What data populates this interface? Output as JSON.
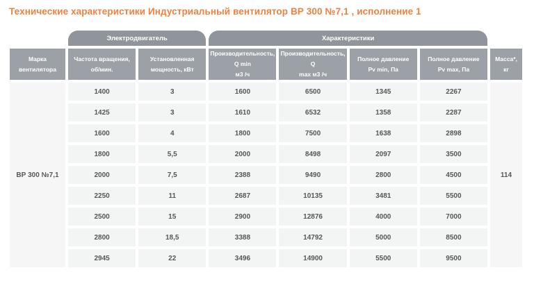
{
  "title": "Технические характеристики Индустриальный вентилятор ВР 300 №7,1 , исполнение 1",
  "colors": {
    "title_accent": "#f0813f",
    "group_header_bg": "#8f959a",
    "column_header_bg": "#9ba1a6",
    "cell_bg": "#f3f4f4",
    "merged_cell_bg": "#f6f6f6",
    "cell_text": "#54565a",
    "header_text": "#ffffff"
  },
  "table": {
    "group_headers": [
      {
        "key": "motor",
        "label": "Электродвигатель",
        "span": 2
      },
      {
        "key": "characteristics",
        "label": "Характеристики",
        "span": 4
      }
    ],
    "columns": [
      {
        "key": "model",
        "line1": "Марка",
        "line2": "вентилятора"
      },
      {
        "key": "speed",
        "line1": "Частота вращения,",
        "line2": "об/мин."
      },
      {
        "key": "power",
        "line1": "Установленная",
        "line2": "мощность, кВт"
      },
      {
        "key": "q-min",
        "line1": "Производительность, Q min",
        "line2": "м3 /ч"
      },
      {
        "key": "q-max",
        "line1": "Производительность, Q",
        "line2": "max м3 /ч"
      },
      {
        "key": "pv-min",
        "line1": "Полное давление",
        "line2": "Pv min, Па"
      },
      {
        "key": "pv-max",
        "line1": "Полное давление",
        "line2": "Pv max, Па"
      },
      {
        "key": "mass",
        "line1": "Масса*,",
        "line2": "кг"
      }
    ],
    "fan_model": "ВР 300 №7,1",
    "mass": "114",
    "rows": [
      [
        "1400",
        "3",
        "1600",
        "6500",
        "1345",
        "2267"
      ],
      [
        "1425",
        "3",
        "1610",
        "6532",
        "1358",
        "2287"
      ],
      [
        "1600",
        "4",
        "1800",
        "7500",
        "1638",
        "2898"
      ],
      [
        "1800",
        "5,5",
        "2000",
        "8498",
        "2097",
        "3500"
      ],
      [
        "2000",
        "7,5",
        "2388",
        "9490",
        "2800",
        "4500"
      ],
      [
        "2250",
        "11",
        "2687",
        "10135",
        "3481",
        "5500"
      ],
      [
        "2500",
        "15",
        "2900",
        "12876",
        "4000",
        "7000"
      ],
      [
        "2800",
        "18,5",
        "3388",
        "14792",
        "5000",
        "8500"
      ],
      [
        "2945",
        "22",
        "3496",
        "14900",
        "5500",
        "9500"
      ]
    ]
  }
}
